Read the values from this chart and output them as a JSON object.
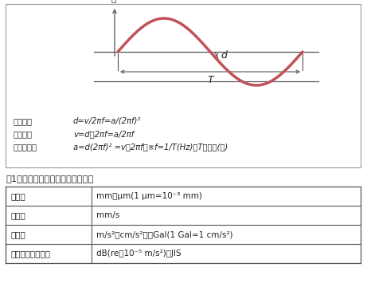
{
  "title": "表1　振動の大きさを表す実用単位",
  "sine_color": "#c0535a",
  "sine_linewidth": 2.5,
  "bg_color": "#ffffff",
  "text_color": "#222222",
  "line_color": "#555555",
  "box_border_color": "#999999",
  "formula_labels": [
    "変位振幅",
    "速度振幅",
    "加速度振幅"
  ],
  "formula_texts": [
    "d=v/2πf=a/(2πf)²",
    "v=d・2πf=a/2πf",
    "a=d(2πf)² =v・2πf　※f=1/T(Hz)、Tは周期(秒)"
  ],
  "table_row_labels": [
    "変　位",
    "速　度",
    "加速度",
    "振動加速度レベル"
  ],
  "table_row_values": [
    "mm、μm(1 μm=10⁻³ mm)",
    "mm/s",
    "m/s²、cm/s²　　Gal(1 Gal=1 cm/s²)",
    "dB(re・10⁻⁵ m/s²)：JIS"
  ],
  "ylabel_text": "変\n位"
}
